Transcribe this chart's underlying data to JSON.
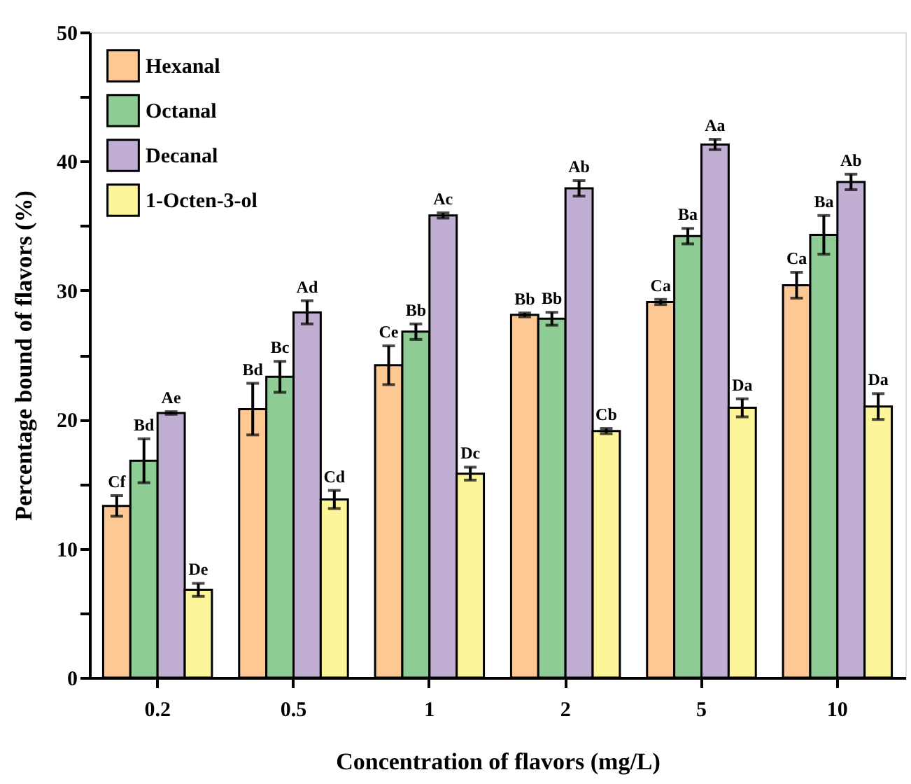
{
  "chart_data": {
    "type": "bar",
    "xlabel": "Concentration of flavors (mg/L)",
    "ylabel": "Percentage bound of flavors (%)",
    "categories": [
      "0.2",
      "0.5",
      "1",
      "2",
      "5",
      "10"
    ],
    "series": [
      {
        "name": "Hexanal",
        "color": "#fdc894",
        "values": [
          13.3,
          20.8,
          24.2,
          28.1,
          29.1,
          30.4
        ],
        "errors": [
          0.8,
          2.0,
          1.5,
          0.15,
          0.2,
          1.0
        ]
      },
      {
        "name": "Octanal",
        "color": "#8fcb95",
        "values": [
          16.8,
          23.3,
          26.8,
          27.8,
          34.2,
          34.3
        ],
        "errors": [
          1.7,
          1.2,
          0.6,
          0.5,
          0.6,
          1.5
        ]
      },
      {
        "name": "Decanal",
        "color": "#c1aed3",
        "values": [
          20.5,
          28.3,
          35.8,
          37.9,
          41.3,
          38.4
        ],
        "errors": [
          0.1,
          0.9,
          0.2,
          0.6,
          0.4,
          0.6
        ]
      },
      {
        "name": "1-Octen-3-ol",
        "color": "#fdf59a",
        "values": [
          6.8,
          13.8,
          15.8,
          19.1,
          20.9,
          21.0
        ],
        "errors": [
          0.5,
          0.7,
          0.5,
          0.2,
          0.7,
          1.0
        ]
      }
    ],
    "ylim": [
      0,
      50
    ],
    "yticks": [
      0,
      {
        "value": 5,
        "label": null
      },
      10,
      {
        "value": 15,
        "label": null
      },
      20,
      {
        "value": 25,
        "label": null
      },
      30,
      {
        "value": 35,
        "label": null
      },
      40,
      {
        "value": 45,
        "label": null
      },
      50
    ],
    "legend": "top left",
    "grid": false,
    "annotations": [
      {
        "text": "Cf",
        "x": "0.2",
        "y": 13.3
      },
      {
        "text": "Bd",
        "x": "0.5",
        "y": 20.8
      },
      {
        "text": "Ce",
        "x": "1",
        "y": 24.2
      },
      {
        "text": "Bb",
        "x": "2",
        "y": 28.1
      },
      {
        "text": "Ca",
        "x": "5",
        "y": 29.1
      },
      {
        "text": "Ca",
        "x": "10",
        "y": 30.4
      },
      {
        "text": "Bd",
        "x": "0.2",
        "y": 16.8
      },
      {
        "text": "Bc",
        "x": "0.5",
        "y": 23.3
      },
      {
        "text": "Bb",
        "x": "1",
        "y": 26.8
      },
      {
        "text": "Bb",
        "x": "2",
        "y": 27.8
      },
      {
        "text": "Ba",
        "x": "5",
        "y": 34.2
      },
      {
        "text": "Ba",
        "x": "10",
        "y": 34.3
      },
      {
        "text": "Ae",
        "x": "0.2",
        "y": 20.5
      },
      {
        "text": "Ad",
        "x": "0.5",
        "y": 28.3
      },
      {
        "text": "Ac",
        "x": "1",
        "y": 35.8
      },
      {
        "text": "Ab",
        "x": "2",
        "y": 37.9
      },
      {
        "text": "Aa",
        "x": "5",
        "y": 41.3
      },
      {
        "text": "Ab",
        "x": "10",
        "y": 38.4
      },
      {
        "text": "De",
        "x": "0.2",
        "y": 6.8
      },
      {
        "text": "Cd",
        "x": "0.5",
        "y": 13.8
      },
      {
        "text": "Dc",
        "x": "1",
        "y": 15.8
      },
      {
        "text": "Cb",
        "x": "2",
        "y": 19.1
      },
      {
        "text": "Da",
        "x": "5",
        "y": 20.9
      },
      {
        "text": "Da",
        "x": "10",
        "y": 21.0
      }
    ]
  }
}
